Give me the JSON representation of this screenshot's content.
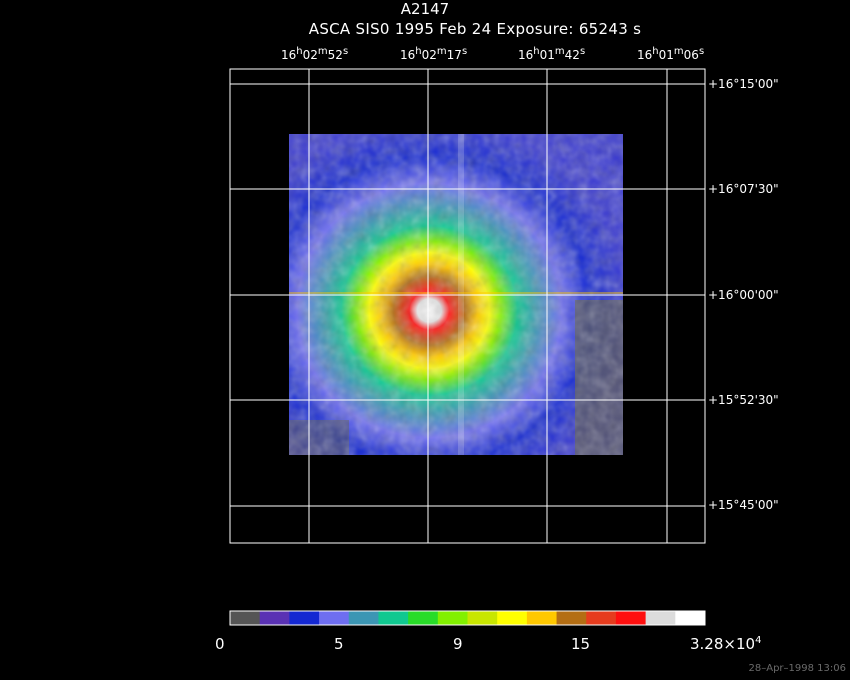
{
  "header": {
    "title": "A2147",
    "subtitle": "ASCA SIS0    1995 Feb 24     Exposure: 65243 s"
  },
  "ra_labels": [
    {
      "h": "16",
      "m": "02",
      "s": "52"
    },
    {
      "h": "16",
      "m": "02",
      "s": "17"
    },
    {
      "h": "16",
      "m": "01",
      "s": "42"
    },
    {
      "h": "16",
      "m": "01",
      "s": "06"
    }
  ],
  "ra_unit_letters": {
    "h": "h",
    "m": "m",
    "s": "s"
  },
  "dec_labels": [
    "+16°15'00\"",
    "+16°07'30\"",
    "+16°00'00\"",
    "+15°52'30\"",
    "+15°45'00\""
  ],
  "colorbar": {
    "colors": [
      "#555555",
      "#5a32b4",
      "#1428d2",
      "#6e6ef0",
      "#3c96b4",
      "#10c890",
      "#28dc28",
      "#82f000",
      "#c8e600",
      "#ffff00",
      "#ffc800",
      "#b46e14",
      "#e63c1e",
      "#ff0f0f",
      "#dcdcdc",
      "#ffffff"
    ],
    "labels": [
      "0",
      "5",
      "9",
      "15"
    ],
    "max_label_base": "3.28×10",
    "max_label_exp": "4"
  },
  "timestamp": "28–Apr–1998 13:06"
}
